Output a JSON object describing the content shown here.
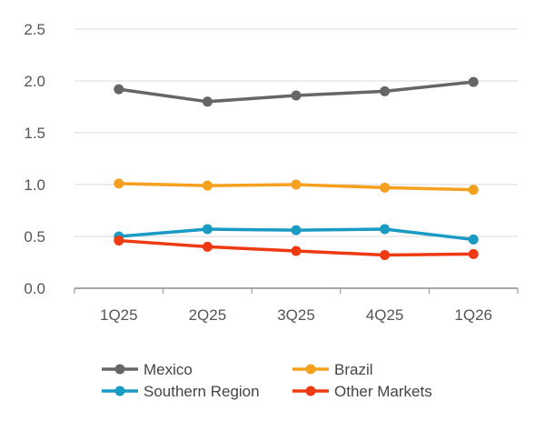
{
  "chart_data": {
    "type": "line",
    "categories": [
      "1Q25",
      "2Q25",
      "3Q25",
      "4Q25",
      "1Q26"
    ],
    "series": [
      {
        "name": "Mexico",
        "values": [
          1.92,
          1.8,
          1.86,
          1.9,
          1.99
        ],
        "color": "#666666"
      },
      {
        "name": "Brazil",
        "values": [
          1.01,
          0.99,
          1.0,
          0.97,
          0.95
        ],
        "color": "#F5A01E"
      },
      {
        "name": "Southern Region",
        "values": [
          0.5,
          0.57,
          0.56,
          0.57,
          0.47
        ],
        "color": "#1A9BC4"
      },
      {
        "name": "Other Markets",
        "values": [
          0.46,
          0.4,
          0.36,
          0.32,
          0.33
        ],
        "color": "#EE3A12"
      }
    ],
    "ylim": [
      0,
      2.5
    ],
    "yticks": [
      "0.0",
      "0.5",
      "1.0",
      "1.5",
      "2.0",
      "2.5"
    ],
    "grid": true,
    "legend": "bottom",
    "title": "",
    "xlabel": "",
    "ylabel": ""
  }
}
